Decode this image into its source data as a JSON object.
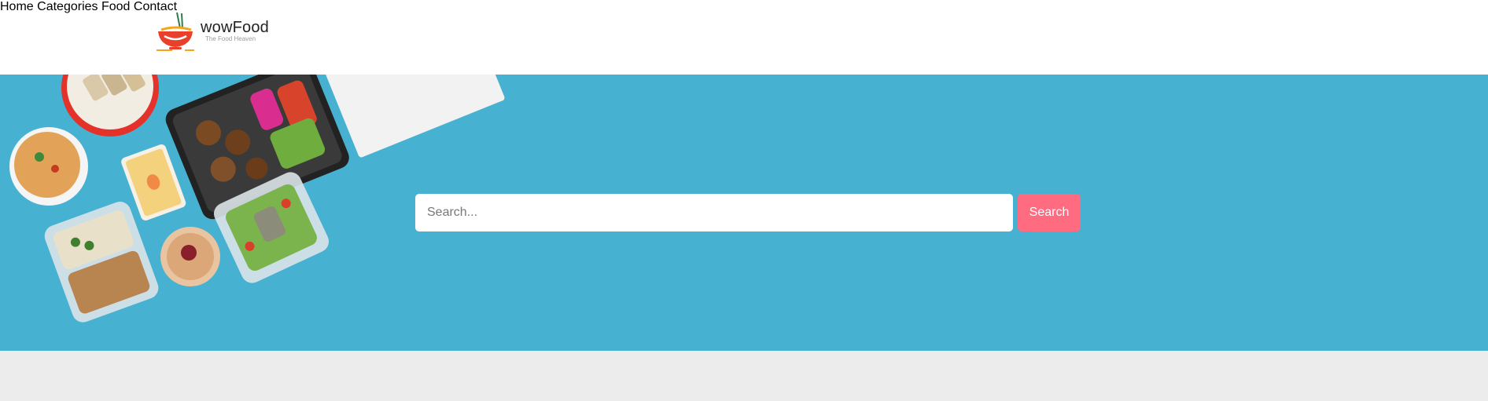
{
  "header": {
    "brand_name": "wowFood",
    "tagline": "The Food Heaven",
    "logo_icon": "noodle-bowl-logo"
  },
  "nav": {
    "items": [
      {
        "label": "Home"
      },
      {
        "label": "Categories"
      },
      {
        "label": "Food"
      },
      {
        "label": "Contact"
      }
    ]
  },
  "search": {
    "placeholder": "Search...",
    "value": "",
    "button_label": "Search"
  },
  "colors": {
    "accent": "#ff6b81",
    "hero_background": "#47b1d2",
    "page_background": "#ececec"
  }
}
